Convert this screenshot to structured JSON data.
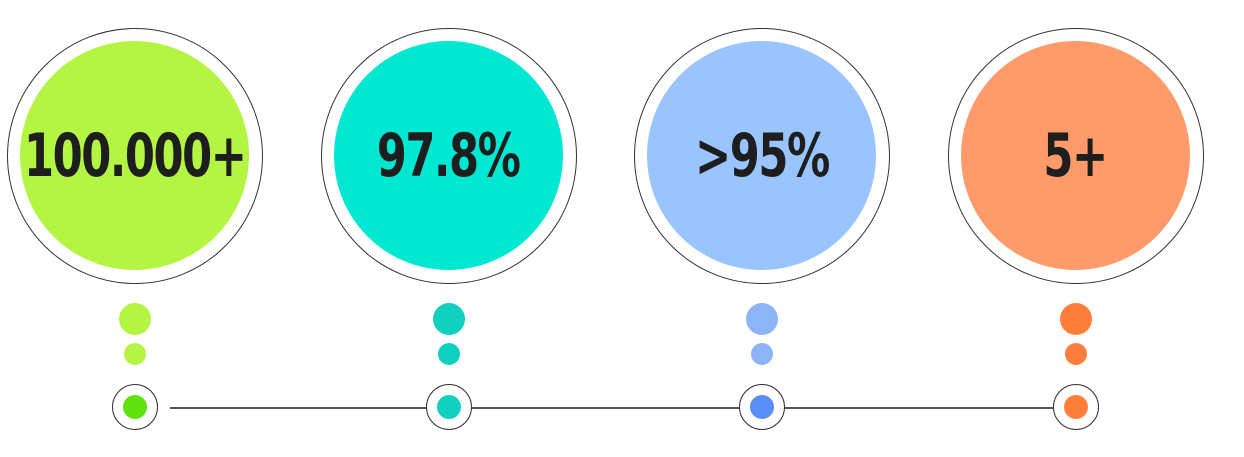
{
  "stats": [
    {
      "value": "100.000+",
      "circle_color": "#b3f542",
      "dot_color": "#b3f542",
      "node_color": "#5ee10d"
    },
    {
      "value": "97.8%",
      "circle_color": "#00e8d2",
      "dot_color": "#10d1c0",
      "node_color": "#10d1c0"
    },
    {
      "value": ">95%",
      "circle_color": "#99c4fd",
      "dot_color": "#8cb4f7",
      "node_color": "#5a8ef8"
    },
    {
      "value": "5+",
      "circle_color": "#ff9a6a",
      "dot_color": "#ff7f3a",
      "node_color": "#ff7f3a"
    }
  ]
}
